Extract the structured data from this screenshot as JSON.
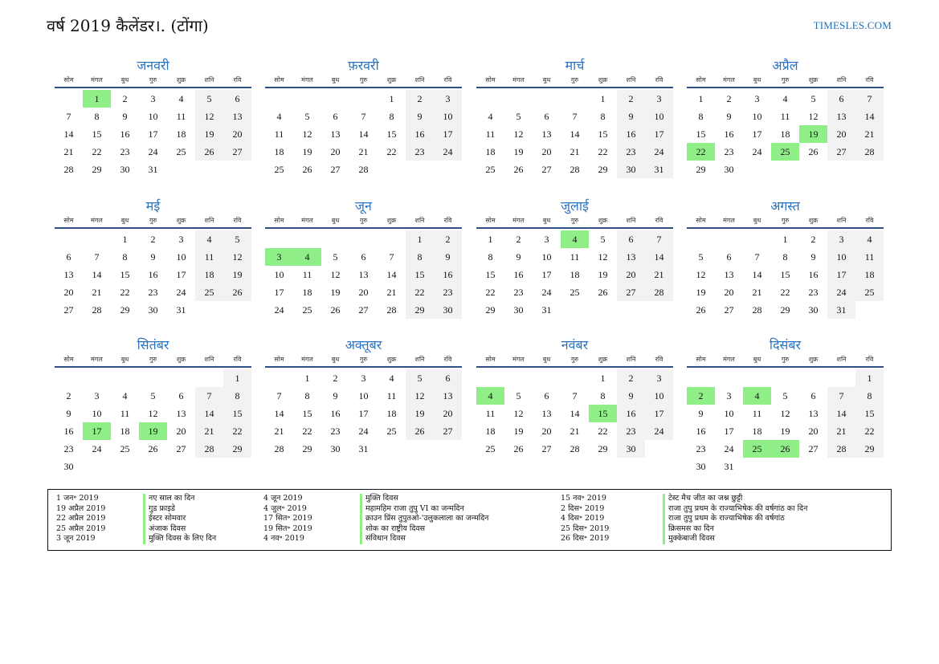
{
  "header": {
    "title": "वर्ष 2019 कैलेंडर।. (टोंगा)",
    "site": "TIMESLES.COM"
  },
  "weekdays": [
    "सोम",
    "मंगल",
    "बुध",
    "गुरु",
    "शुक्र",
    "शनि",
    "रवि"
  ],
  "colors": {
    "month_name": "#2a73c0",
    "holiday": "#90ee88",
    "weekend": "#f2f2f2",
    "rule": "#2e4f86"
  },
  "months": [
    {
      "name": "जनवरी",
      "offset": 1,
      "days": 31,
      "holidays": [
        1
      ]
    },
    {
      "name": "फ़रवरी",
      "offset": 4,
      "days": 28,
      "holidays": []
    },
    {
      "name": "मार्च",
      "offset": 4,
      "days": 31,
      "holidays": []
    },
    {
      "name": "अप्रैल",
      "offset": 0,
      "days": 30,
      "holidays": [
        19,
        22,
        25
      ]
    },
    {
      "name": "मई",
      "offset": 2,
      "days": 31,
      "holidays": []
    },
    {
      "name": "जून",
      "offset": 5,
      "days": 30,
      "holidays": [
        3,
        4
      ]
    },
    {
      "name": "जुलाई",
      "offset": 0,
      "days": 31,
      "holidays": [
        4
      ]
    },
    {
      "name": "अगस्त",
      "offset": 3,
      "days": 31,
      "holidays": []
    },
    {
      "name": "सितंबर",
      "offset": 6,
      "days": 30,
      "holidays": [
        17,
        19
      ]
    },
    {
      "name": "अक्तूबर",
      "offset": 1,
      "days": 31,
      "holidays": []
    },
    {
      "name": "नवंबर",
      "offset": 4,
      "days": 30,
      "holidays": [
        4,
        15
      ]
    },
    {
      "name": "दिसंबर",
      "offset": 6,
      "days": 31,
      "holidays": [
        2,
        4,
        25,
        26
      ]
    }
  ],
  "holiday_list": [
    [
      {
        "date": "1 जन॰ 2019",
        "name": "नए साल का दिन"
      },
      {
        "date": "19 अप्रैल 2019",
        "name": "गुड फ्राइडे"
      },
      {
        "date": "22 अप्रैल 2019",
        "name": "ईस्टर सोमवार"
      },
      {
        "date": "25 अप्रैल 2019",
        "name": "अंजाक दिवस"
      },
      {
        "date": "3 जून 2019",
        "name": "मुक्ति दिवस के लिए दिन"
      }
    ],
    [
      {
        "date": "4 जून 2019",
        "name": "मुक्ति दिवस"
      },
      {
        "date": "4 जुल॰ 2019",
        "name": "महामहिम राजा तुपु VI का जन्मदिन"
      },
      {
        "date": "17 सित॰ 2019",
        "name": "क्राउन प्रिंस तुपुतओ-'उलुकलाला का जन्मदिन"
      },
      {
        "date": "19 सित॰ 2019",
        "name": "शोक का राष्ट्रीय दिवस"
      },
      {
        "date": "4 नव॰ 2019",
        "name": "संविधान दिवस"
      }
    ],
    [
      {
        "date": "15 नव॰ 2019",
        "name": "टेस्ट मैच जीत का जश्न छुट्टी"
      },
      {
        "date": "2 दिस॰ 2019",
        "name": "राजा तुपु प्रथम के राज्याभिषेक की वर्षगांठ का दिन"
      },
      {
        "date": "4 दिस॰ 2019",
        "name": "राजा तुपु प्रथम के राज्याभिषेक की वर्षगांठ"
      },
      {
        "date": "25 दिस॰ 2019",
        "name": "क्रिसमस का दिन"
      },
      {
        "date": "26 दिस॰ 2019",
        "name": "मुक्केबाजी दिवस"
      }
    ]
  ]
}
